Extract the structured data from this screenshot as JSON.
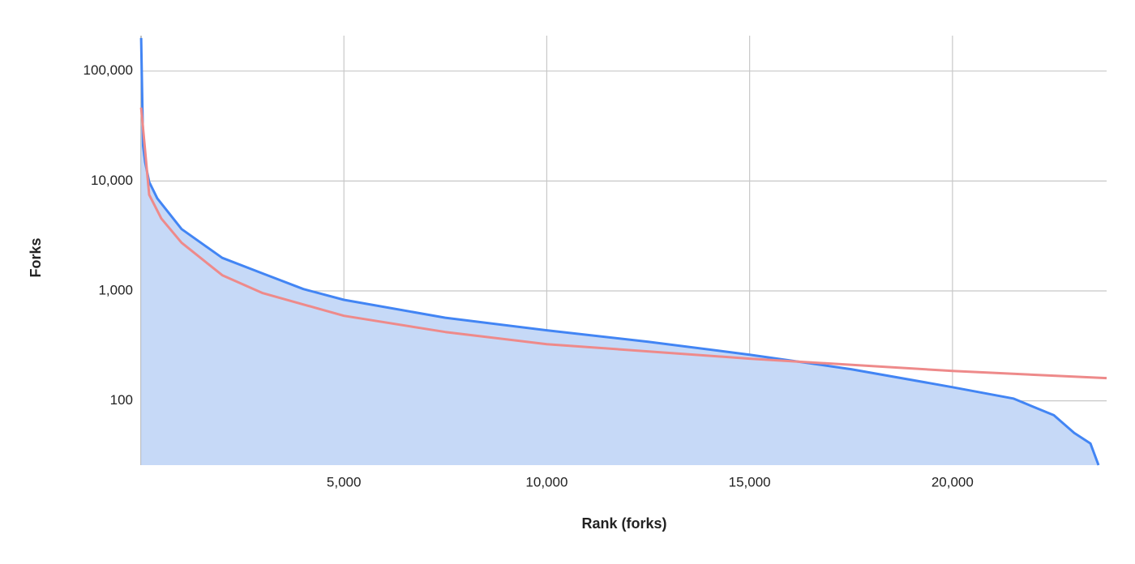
{
  "chart_data": {
    "type": "line",
    "x_label": "Rank (forks)",
    "y_label": "Forks",
    "xlim": [
      0,
      23800
    ],
    "ylim": [
      26,
      210000
    ],
    "log_y": true,
    "grid": true,
    "xticks": [
      {
        "value": 5000,
        "label": "5,000"
      },
      {
        "value": 10000,
        "label": "10,000"
      },
      {
        "value": 15000,
        "label": "15,000"
      },
      {
        "value": 20000,
        "label": "20,000"
      }
    ],
    "yticks": [
      {
        "value": 100,
        "label": "100"
      },
      {
        "value": 1000,
        "label": "1,000"
      },
      {
        "value": 10000,
        "label": "10,000"
      },
      {
        "value": 100000,
        "label": "100,000"
      }
    ],
    "series": [
      {
        "color": "#4285f4",
        "fill": "#c6d9f7",
        "area": true,
        "x": [
          1,
          50,
          100,
          200,
          400,
          1000,
          2000,
          3000,
          4000,
          5000,
          7500,
          10000,
          12500,
          15000,
          17500,
          20000,
          21500,
          22500,
          23000,
          23400,
          23600
        ],
        "values": [
          200000,
          21000,
          14900,
          9800,
          6950,
          3650,
          2000,
          1440,
          1040,
          830,
          570,
          438,
          345,
          263,
          194,
          133,
          105,
          74,
          51,
          41,
          26
        ]
      },
      {
        "color": "#ee8a8a",
        "area": false,
        "x": [
          1,
          200,
          500,
          1000,
          2000,
          3000,
          5000,
          7500,
          10000,
          15000,
          20000,
          23800
        ],
        "values": [
          46600,
          7500,
          4550,
          2740,
          1390,
          955,
          594,
          423,
          328,
          242,
          187,
          161
        ]
      }
    ]
  }
}
